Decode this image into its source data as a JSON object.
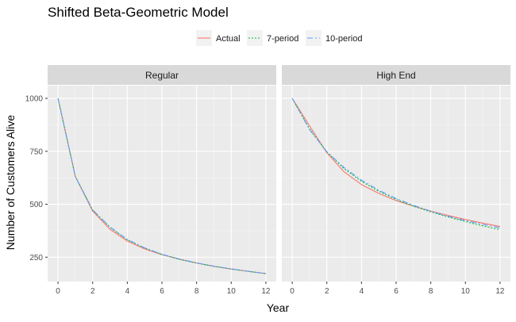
{
  "chart_data": {
    "type": "line",
    "title": "Shifted Beta-Geometric Model",
    "xlabel": "Year",
    "ylabel": "Number of Customers Alive",
    "xlim": [
      -0.6,
      12.6
    ],
    "ylim": [
      135,
      1060
    ],
    "x_ticks": [
      0,
      2,
      4,
      6,
      8,
      10,
      12
    ],
    "y_ticks": [
      250,
      500,
      750,
      1000
    ],
    "legend_position": "top",
    "grid": true,
    "panels": [
      {
        "label": "Regular",
        "x": [
          0,
          1,
          2,
          3,
          4,
          5,
          6,
          7,
          8,
          9,
          10,
          11,
          12
        ],
        "series": [
          {
            "name": "Actual",
            "color": "#f8766d",
            "dash": "solid",
            "values": [
              1000,
              631,
              468,
              382,
              326,
              289,
              262,
              241,
              223,
              207,
              194,
              183,
              173
            ]
          },
          {
            "name": "7-period",
            "color": "#00ba38",
            "dash": "dotted",
            "values": [
              1000,
              631,
              472,
              391,
              332,
              293,
              263,
              240,
              222,
              207,
              194,
              183,
              173
            ]
          },
          {
            "name": "10-period",
            "color": "#619cff",
            "dash": "dashdot",
            "values": [
              1000,
              631,
              474,
              393,
              334,
              294,
              264,
              242,
              223,
              208,
              195,
              183,
              173
            ]
          }
        ]
      },
      {
        "label": "High End",
        "x": [
          0,
          1,
          2,
          3,
          4,
          5,
          6,
          7,
          8,
          9,
          10,
          11,
          12
        ],
        "series": [
          {
            "name": "Actual",
            "color": "#f8766d",
            "dash": "solid",
            "values": [
              1000,
              870,
              743,
              653,
              593,
              551,
              517,
              491,
              468,
              447,
              428,
              411,
              395
            ]
          },
          {
            "name": "7-period",
            "color": "#00ba38",
            "dash": "dotted",
            "values": [
              1000,
              856,
              747,
              668,
              608,
              561,
              523,
              491,
              464,
              440,
              418,
              398,
              380
            ]
          },
          {
            "name": "10-period",
            "color": "#619cff",
            "dash": "dashdot",
            "values": [
              1000,
              852,
              748,
              673,
              614,
              566,
              527,
              495,
              467,
              443,
              423,
              405,
              389
            ]
          }
        ]
      }
    ]
  }
}
